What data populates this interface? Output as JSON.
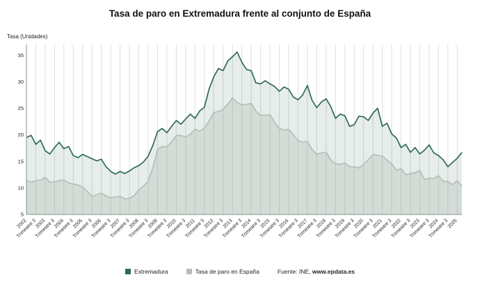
{
  "chart_data": {
    "type": "area",
    "title": "Tasa de paro en Extremadura frente al conjunto de España",
    "ylabel": "Tasa (Unidades)",
    "xlabel": "",
    "x_unit": "trimestres 2002 T1 - 2025 T2",
    "n_points": 94,
    "x_tick_every": 2,
    "grid": "vertical",
    "legend_position": "bottom",
    "source": "Fuente: INE, www.epdata.es",
    "source_prefix": "Fuente: INE,",
    "source_site": "www.epdata.es",
    "yticks": [
      5,
      10,
      15,
      20,
      25,
      30,
      35
    ],
    "ylim": [
      5,
      37
    ],
    "x_tick_labels": [
      "2002",
      "Trimestre 3",
      "2003",
      "Trimestre 3",
      "2004",
      "Trimestre 3",
      "2005",
      "Trimestre 3",
      "2006",
      "Trimestre 3",
      "2007",
      "Trimestre 3",
      "2008",
      "Trimestre 3",
      "2009",
      "Trimestre 3",
      "2010",
      "Trimestre 3",
      "2011",
      "Trimestre 3",
      "2012",
      "Trimestre 3",
      "2013",
      "Trimestre 3",
      "2014",
      "Trimestre 3",
      "2015",
      "Trimestre 3",
      "2016",
      "Trimestre 3",
      "2017",
      "Trimestre 3",
      "2018",
      "Trimestre 3",
      "2019",
      "Trimestre 3",
      "2020",
      "Trimestre 3",
      "2021",
      "Trimestre 3",
      "2022",
      "Trimestre 3",
      "2023",
      "Trimestre 3",
      "2024",
      "Trimestre 3",
      "2025"
    ],
    "series": [
      {
        "name": "Extremadura",
        "color": "#2e6b51",
        "fill": "rgba(46,107,81,0.12)",
        "width": 1.7,
        "values": [
          19.5,
          19.9,
          18.2,
          19.0,
          17.0,
          16.4,
          17.6,
          18.6,
          17.4,
          17.8,
          16.1,
          15.7,
          16.3,
          15.9,
          15.5,
          15.1,
          15.4,
          14.0,
          13.1,
          12.6,
          13.1,
          12.7,
          13.2,
          13.8,
          14.2,
          14.9,
          16.0,
          18.0,
          20.6,
          21.2,
          20.4,
          21.6,
          22.7,
          22.0,
          23.0,
          23.9,
          23.1,
          24.5,
          25.2,
          28.6,
          30.9,
          32.5,
          32.1,
          33.9,
          34.7,
          35.6,
          33.7,
          32.3,
          32.1,
          29.8,
          29.6,
          30.2,
          29.6,
          29.1,
          28.2,
          29.0,
          28.6,
          27.1,
          26.6,
          27.5,
          29.3,
          26.5,
          25.1,
          26.2,
          26.8,
          25.3,
          23.1,
          23.9,
          23.6,
          21.6,
          21.9,
          23.5,
          23.4,
          22.7,
          24.1,
          25.0,
          21.6,
          22.2,
          20.2,
          19.4,
          17.6,
          18.2,
          16.7,
          17.6,
          16.4,
          17.1,
          18.1,
          16.6,
          16.1,
          15.3,
          14.0,
          14.8,
          15.6,
          16.7
        ]
      },
      {
        "name": "Tasa de paro en España",
        "color": "#b7beb7",
        "fill": "rgba(150,160,150,0.22)",
        "width": 1.7,
        "values": [
          11.47,
          11.09,
          11.39,
          11.45,
          11.96,
          11.08,
          11.17,
          11.37,
          11.5,
          10.93,
          10.74,
          10.56,
          10.17,
          9.33,
          8.42,
          8.7,
          9.03,
          8.46,
          8.15,
          8.26,
          8.42,
          7.93,
          8.03,
          8.57,
          9.6,
          10.36,
          11.23,
          13.79,
          17.24,
          17.77,
          17.75,
          18.66,
          19.84,
          19.89,
          19.59,
          20.11,
          21.08,
          20.64,
          21.28,
          22.56,
          24.19,
          24.4,
          24.79,
          25.77,
          26.94,
          26.06,
          25.65,
          25.73,
          25.93,
          24.47,
          23.67,
          23.7,
          23.78,
          22.37,
          21.18,
          20.9,
          21.0,
          20.0,
          18.91,
          18.63,
          18.75,
          17.22,
          16.38,
          16.55,
          16.74,
          15.28,
          14.55,
          14.45,
          14.7,
          14.02,
          13.92,
          13.78,
          14.41,
          15.33,
          16.26,
          16.13,
          15.98,
          15.26,
          14.57,
          13.33,
          13.65,
          12.48,
          12.67,
          12.87,
          13.26,
          11.6,
          11.84,
          11.76,
          12.29,
          11.27,
          11.21,
          10.61,
          11.36,
          10.29
        ]
      }
    ]
  }
}
